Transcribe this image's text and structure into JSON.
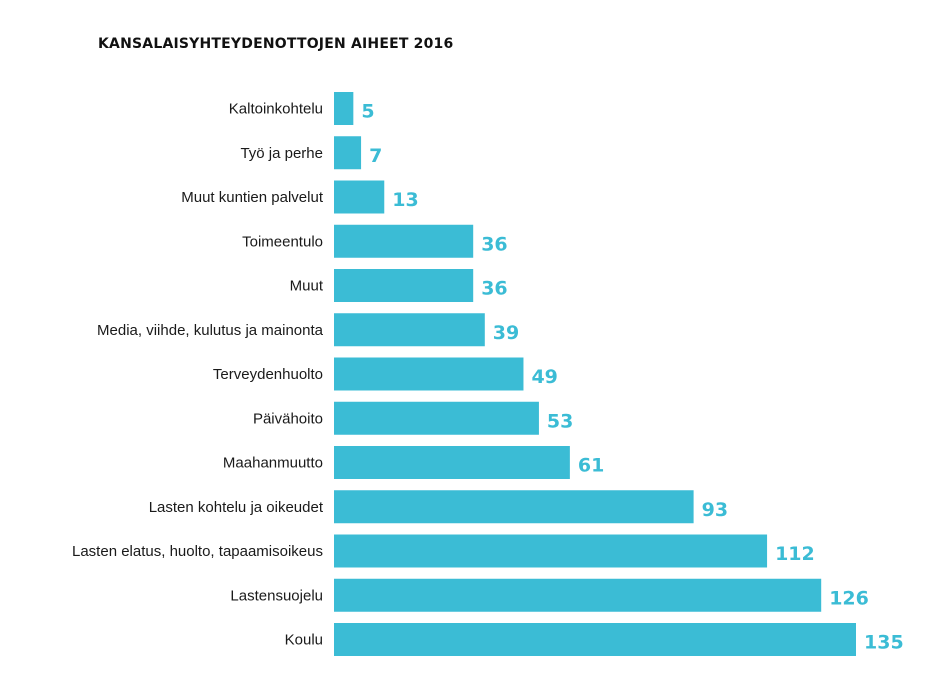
{
  "chart_data": {
    "type": "bar",
    "orientation": "horizontal",
    "title": "KANSALAISYHTEYDENOTTOJEN AIHEET 2016",
    "categories": [
      "Kaltoinkohtelu",
      "Työ ja perhe",
      "Muut kuntien palvelut",
      "Toimeentulo",
      "Muut",
      "Media, viihde, kulutus ja mainonta",
      "Terveydenhuolto",
      "Päivähoito",
      "Maahanmuutto",
      "Lasten kohtelu ja oikeudet",
      "Lasten elatus, huolto, tapaamisoikeus",
      "Lastensuojelu",
      "Koulu"
    ],
    "values": [
      5,
      7,
      13,
      36,
      36,
      39,
      49,
      53,
      61,
      93,
      112,
      126,
      135
    ],
    "value_labels": [
      "5",
      "7",
      "13",
      "36",
      "36",
      "39",
      "49",
      "53",
      "61",
      "93",
      "112",
      "126",
      "135"
    ],
    "xlim": [
      0,
      135
    ],
    "grid": false,
    "legend": "none",
    "bar_color": "#3bbcd5",
    "value_label_color": "#3bbcd5"
  }
}
